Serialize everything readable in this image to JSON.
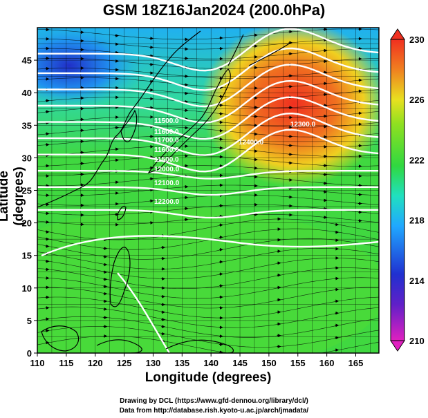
{
  "title": "GSM 18Z16Jan2024 (200.0hPa)",
  "x_axis": {
    "label": "Longitude (degrees)",
    "ticks": [
      110,
      115,
      120,
      125,
      130,
      135,
      140,
      145,
      150,
      155,
      160,
      165
    ],
    "range": [
      110,
      169
    ]
  },
  "y_axis": {
    "label": "Latitude  (degrees)",
    "ticks": [
      0,
      5,
      10,
      15,
      20,
      25,
      30,
      35,
      40,
      45
    ],
    "range": [
      0,
      50
    ]
  },
  "colorbar": {
    "ticks": [
      "230",
      "226",
      "222",
      "218",
      "214",
      "210"
    ],
    "range": [
      210,
      230
    ],
    "colors": [
      "#e020c0",
      "#2020c8",
      "#20a0ff",
      "#20e0c0",
      "#30d840",
      "#80e020",
      "#e8e020",
      "#f08020",
      "#f03020"
    ]
  },
  "contour_labels": [
    "11500.0",
    "11600.0",
    "11700.0",
    "11600.0",
    "11500.0",
    "12000.0",
    "12100.0",
    "12200.0",
    "12300.0",
    "12400.0"
  ],
  "credits": {
    "line1": "Drawing by DCL (https://www.gfd-dennou.org/library/dcl/)",
    "line2": "Data from http://database.rish.kyoto-u.ac.jp/arch/jmadata/"
  }
}
